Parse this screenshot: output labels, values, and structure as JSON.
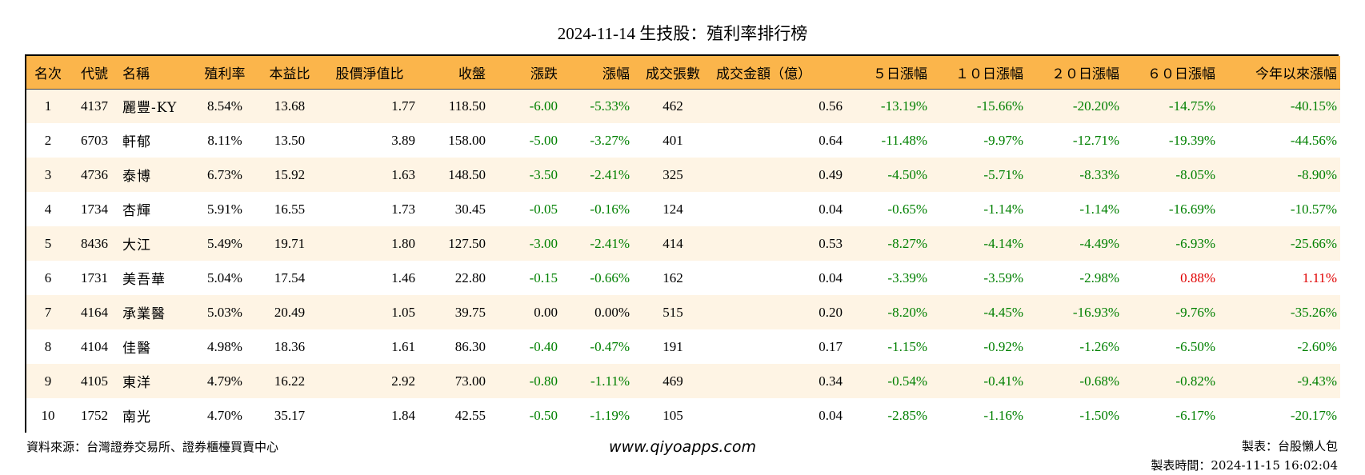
{
  "title": "2024-11-14 生技股：殖利率排行榜",
  "columns": [
    "名次",
    "代號",
    "名稱",
    "殖利率",
    "本益比",
    "股價淨值比",
    "收盤",
    "漲跌",
    "漲幅",
    "成交張數",
    "成交金額（億）",
    "５日漲幅",
    "１０日漲幅",
    "２０日漲幅",
    "６０日漲幅",
    "今年以來漲幅"
  ],
  "rows": [
    [
      "1",
      "4137",
      "麗豐-KY",
      "8.54%",
      "13.68",
      "1.77",
      "118.50",
      "-6.00",
      "-5.33%",
      "462",
      "0.56",
      "-13.19%",
      "-15.66%",
      "-20.20%",
      "-14.75%",
      "-40.15%"
    ],
    [
      "2",
      "6703",
      "軒郁",
      "8.11%",
      "13.50",
      "3.89",
      "158.00",
      "-5.00",
      "-3.27%",
      "401",
      "0.64",
      "-11.48%",
      "-9.97%",
      "-12.71%",
      "-19.39%",
      "-44.56%"
    ],
    [
      "3",
      "4736",
      "泰博",
      "6.73%",
      "15.92",
      "1.63",
      "148.50",
      "-3.50",
      "-2.41%",
      "325",
      "0.49",
      "-4.50%",
      "-5.71%",
      "-8.33%",
      "-8.05%",
      "-8.90%"
    ],
    [
      "4",
      "1734",
      "杏輝",
      "5.91%",
      "16.55",
      "1.73",
      "30.45",
      "-0.05",
      "-0.16%",
      "124",
      "0.04",
      "-0.65%",
      "-1.14%",
      "-1.14%",
      "-16.69%",
      "-10.57%"
    ],
    [
      "5",
      "8436",
      "大江",
      "5.49%",
      "19.71",
      "1.80",
      "127.50",
      "-3.00",
      "-2.41%",
      "414",
      "0.53",
      "-8.27%",
      "-4.14%",
      "-4.49%",
      "-6.93%",
      "-25.66%"
    ],
    [
      "6",
      "1731",
      "美吾華",
      "5.04%",
      "17.54",
      "1.46",
      "22.80",
      "-0.15",
      "-0.66%",
      "162",
      "0.04",
      "-3.39%",
      "-3.59%",
      "-2.98%",
      "0.88%",
      "1.11%"
    ],
    [
      "7",
      "4164",
      "承業醫",
      "5.03%",
      "20.49",
      "1.05",
      "39.75",
      "0.00",
      "0.00%",
      "515",
      "0.20",
      "-8.20%",
      "-4.45%",
      "-16.93%",
      "-9.76%",
      "-35.26%"
    ],
    [
      "8",
      "4104",
      "佳醫",
      "4.98%",
      "18.36",
      "1.61",
      "86.30",
      "-0.40",
      "-0.47%",
      "191",
      "0.17",
      "-1.15%",
      "-0.92%",
      "-1.26%",
      "-6.50%",
      "-2.60%"
    ],
    [
      "9",
      "4105",
      "東洋",
      "4.79%",
      "16.22",
      "2.92",
      "73.00",
      "-0.80",
      "-1.11%",
      "469",
      "0.34",
      "-0.54%",
      "-0.41%",
      "-0.68%",
      "-0.82%",
      "-9.43%"
    ],
    [
      "10",
      "1752",
      "南光",
      "4.70%",
      "35.17",
      "1.84",
      "42.55",
      "-0.50",
      "-1.19%",
      "105",
      "0.04",
      "-2.85%",
      "-1.16%",
      "-1.50%",
      "-6.17%",
      "-20.17%"
    ]
  ],
  "colors": {
    "header_bg": "#FBB54B",
    "row_alt_bg": "#FEF4E4",
    "negative": "#008000",
    "positive": "#E00000"
  },
  "footer": {
    "source": "資料來源：台灣證券交易所、證券櫃檯買賣中心",
    "website": "www.qiyoapps.com",
    "maker": "製表：台股懶人包",
    "made_time": "製表時間：2024-11-15 16:02:04"
  }
}
